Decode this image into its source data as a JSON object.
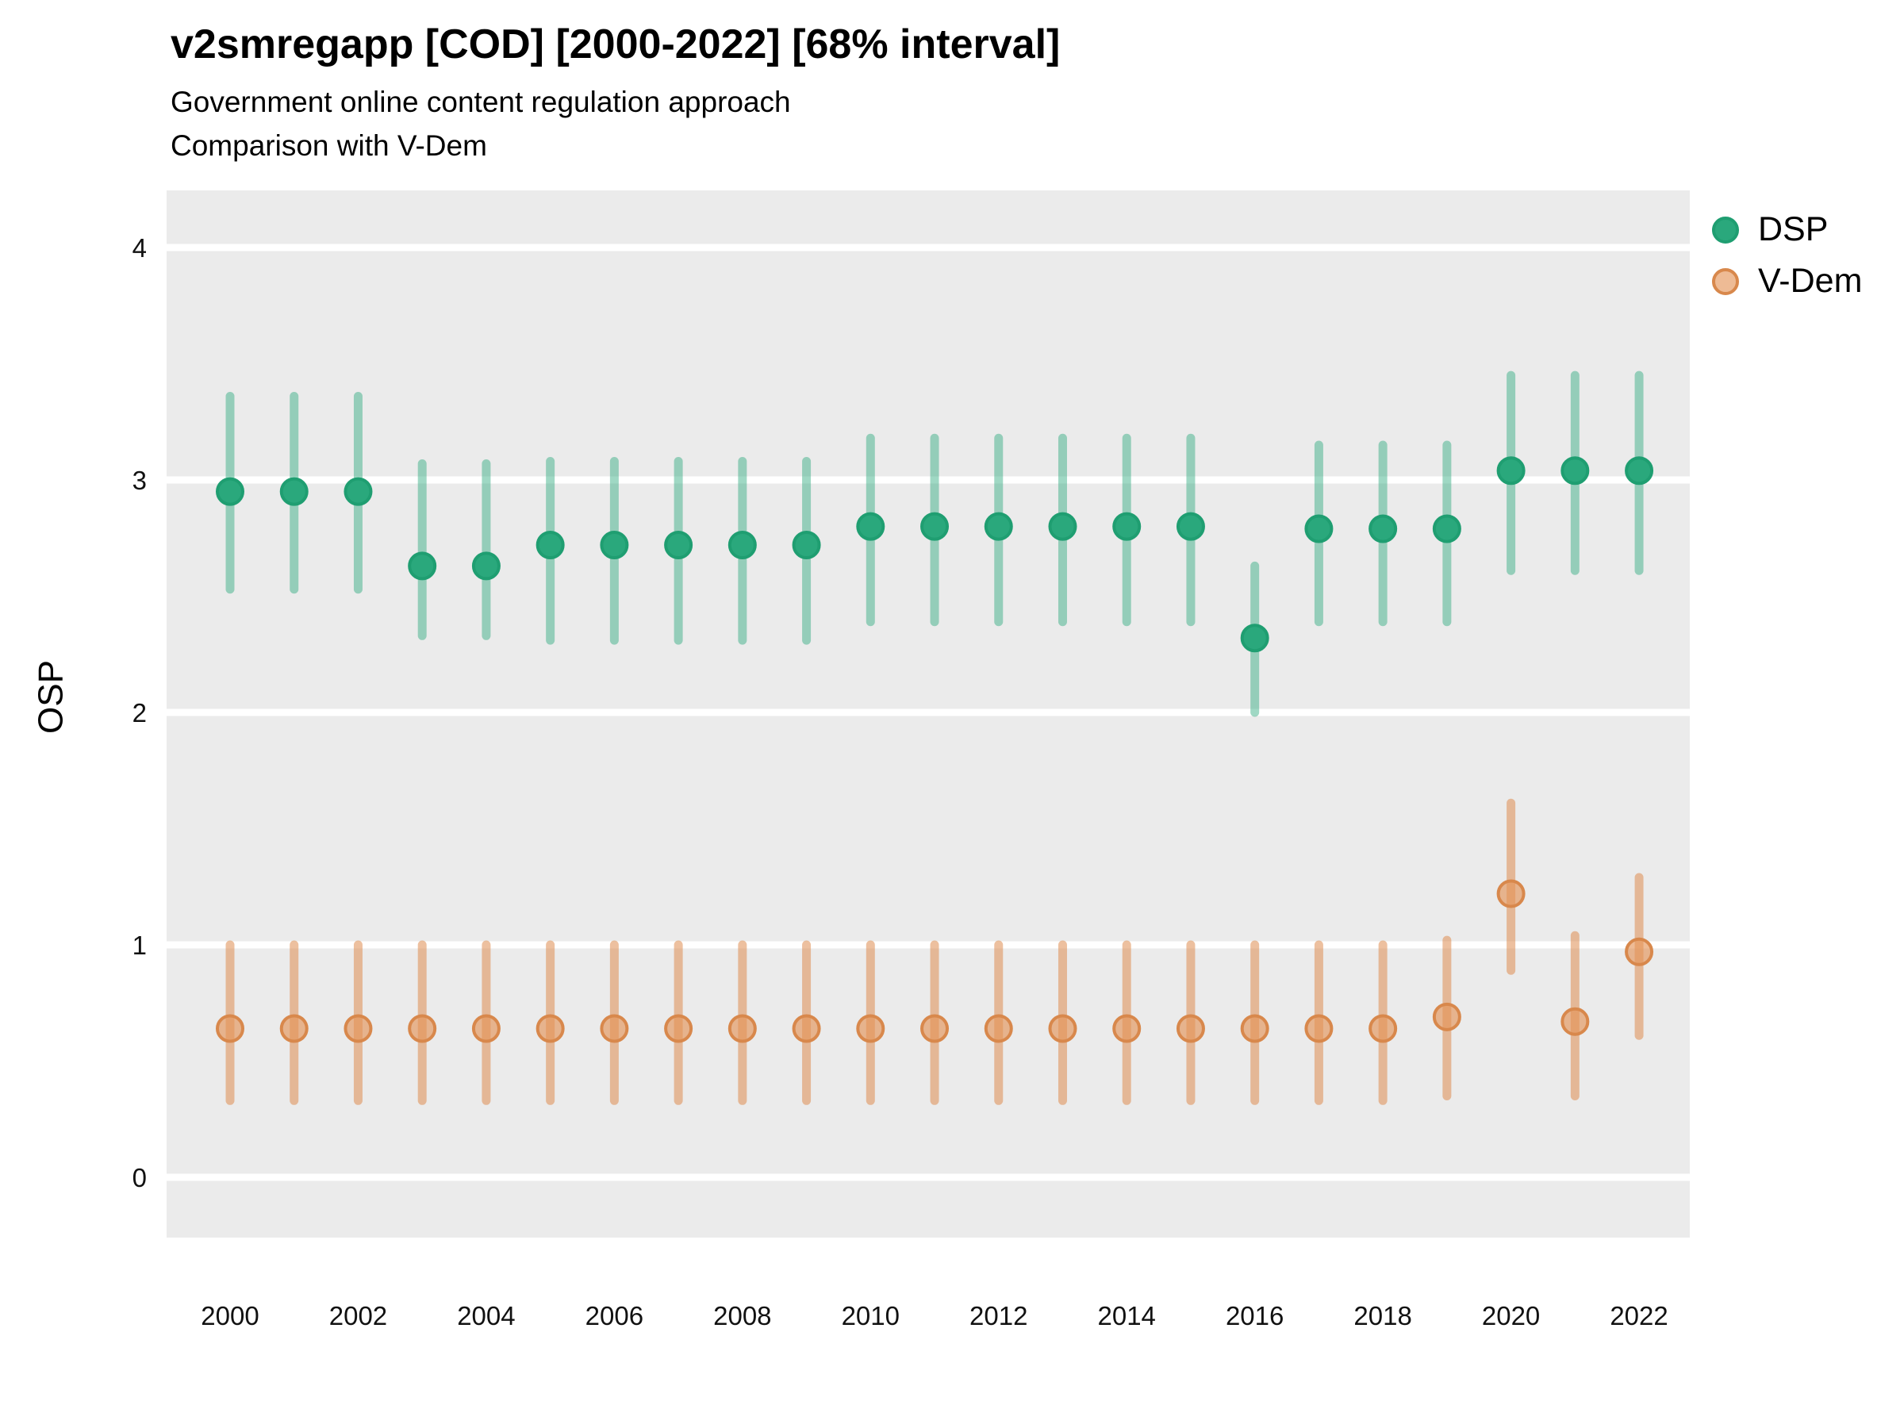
{
  "title": "v2smregapp [COD] [2000-2022] [68% interval]",
  "subtitle_line1": "Government online content regulation approach",
  "subtitle_line2": "Comparison with V-Dem",
  "y_axis_label": "OSP",
  "colors": {
    "panel_background": "#ebebeb",
    "gridline": "#ffffff",
    "dsp_green": "#2aa87c",
    "vdem_orange": "#dd8a4f",
    "text": "#000000"
  },
  "chart_data": {
    "type": "scatter",
    "title": "v2smregapp [COD] [2000-2022] [68% interval]",
    "subtitle": "Government online content regulation approach — Comparison with V-Dem",
    "xlabel": "",
    "ylabel": "OSP",
    "x": [
      2000,
      2001,
      2002,
      2003,
      2004,
      2005,
      2006,
      2007,
      2008,
      2009,
      2010,
      2011,
      2012,
      2013,
      2014,
      2015,
      2016,
      2017,
      2018,
      2019,
      2020,
      2021,
      2022
    ],
    "x_tick_labels": [
      "2000",
      "2002",
      "2004",
      "2006",
      "2008",
      "2010",
      "2012",
      "2014",
      "2016",
      "2018",
      "2020",
      "2022"
    ],
    "x_tick_years": [
      2000,
      2002,
      2004,
      2006,
      2008,
      2010,
      2012,
      2014,
      2016,
      2018,
      2020,
      2022
    ],
    "y_ticks": [
      0,
      1,
      2,
      3,
      4
    ],
    "ylim": [
      -0.26,
      4.25
    ],
    "grid": "white-on-grey",
    "legend_position": "right",
    "interval_level": "68%",
    "series": [
      {
        "name": "DSP",
        "color_dot": "#2aa87c",
        "color_dot_stroke": "#1f9e71",
        "color_line": "rgba(42,168,124,0.45)",
        "values": [
          2.95,
          2.95,
          2.95,
          2.63,
          2.63,
          2.72,
          2.72,
          2.72,
          2.72,
          2.72,
          2.8,
          2.8,
          2.8,
          2.8,
          2.8,
          2.8,
          2.32,
          2.79,
          2.79,
          2.79,
          3.04,
          3.04,
          3.04
        ],
        "lower": [
          2.53,
          2.53,
          2.53,
          2.33,
          2.33,
          2.31,
          2.31,
          2.31,
          2.31,
          2.31,
          2.39,
          2.39,
          2.39,
          2.39,
          2.39,
          2.39,
          2.0,
          2.39,
          2.39,
          2.39,
          2.61,
          2.61,
          2.61
        ],
        "upper": [
          3.36,
          3.36,
          3.36,
          3.07,
          3.07,
          3.08,
          3.08,
          3.08,
          3.08,
          3.08,
          3.18,
          3.18,
          3.18,
          3.18,
          3.18,
          3.18,
          2.63,
          3.15,
          3.15,
          3.15,
          3.45,
          3.45,
          3.45
        ]
      },
      {
        "name": "V-Dem",
        "color_dot": "rgba(228,145,84,0.62)",
        "color_dot_stroke": "#d8884c",
        "color_line": "rgba(223,140,80,0.55)",
        "values": [
          0.64,
          0.64,
          0.64,
          0.64,
          0.64,
          0.64,
          0.64,
          0.64,
          0.64,
          0.64,
          0.64,
          0.64,
          0.64,
          0.64,
          0.64,
          0.64,
          0.64,
          0.64,
          0.64,
          0.69,
          1.22,
          0.67,
          0.97
        ],
        "lower": [
          0.33,
          0.33,
          0.33,
          0.33,
          0.33,
          0.33,
          0.33,
          0.33,
          0.33,
          0.33,
          0.33,
          0.33,
          0.33,
          0.33,
          0.33,
          0.33,
          0.33,
          0.33,
          0.33,
          0.35,
          0.89,
          0.35,
          0.61
        ],
        "upper": [
          1.0,
          1.0,
          1.0,
          1.0,
          1.0,
          1.0,
          1.0,
          1.0,
          1.0,
          1.0,
          1.0,
          1.0,
          1.0,
          1.0,
          1.0,
          1.0,
          1.0,
          1.0,
          1.0,
          1.02,
          1.61,
          1.04,
          1.29
        ]
      }
    ]
  }
}
